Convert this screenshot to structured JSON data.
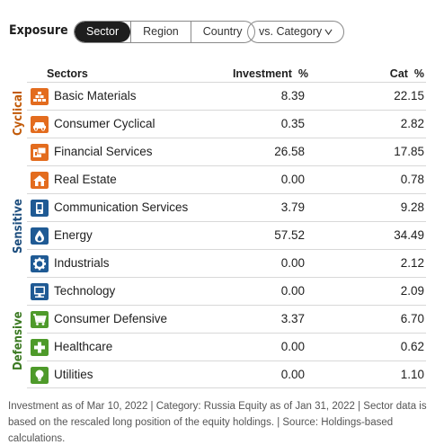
{
  "header": {
    "title": "Exposure",
    "tabs": [
      {
        "label": "Sector",
        "active": true
      },
      {
        "label": "Region",
        "active": false
      },
      {
        "label": "Country",
        "active": false
      }
    ],
    "compare_dropdown": "vs. Category"
  },
  "columns": {
    "sectors": "Sectors",
    "investment": "Investment  %",
    "category": "Cat  %"
  },
  "groups": {
    "cyclical": {
      "label": "Cyclical",
      "color": "#c25b0a"
    },
    "sensitive": {
      "label": "Sensitive",
      "color": "#1d4e7e"
    },
    "defensive": {
      "label": "Defensive",
      "color": "#3c7a23"
    }
  },
  "rows": [
    {
      "name": "Basic Materials",
      "investment": "8.39",
      "cat": "22.15",
      "icon": "basic-materials-icon",
      "color": "#e36c1e"
    },
    {
      "name": "Consumer Cyclical",
      "investment": "0.35",
      "cat": "2.82",
      "icon": "consumer-cyclical-icon",
      "color": "#e36c1e"
    },
    {
      "name": "Financial Services",
      "investment": "26.58",
      "cat": "17.85",
      "icon": "financial-services-icon",
      "color": "#e36c1e"
    },
    {
      "name": "Real Estate",
      "investment": "0.00",
      "cat": "0.78",
      "icon": "real-estate-icon",
      "color": "#e36c1e"
    },
    {
      "name": "Communication Services",
      "investment": "3.79",
      "cat": "9.28",
      "icon": "communication-services-icon",
      "color": "#1f5a94"
    },
    {
      "name": "Energy",
      "investment": "57.52",
      "cat": "34.49",
      "icon": "energy-icon",
      "color": "#1f5a94"
    },
    {
      "name": "Industrials",
      "investment": "0.00",
      "cat": "2.12",
      "icon": "industrials-icon",
      "color": "#1f5a94"
    },
    {
      "name": "Technology",
      "investment": "0.00",
      "cat": "2.09",
      "icon": "technology-icon",
      "color": "#1f5a94"
    },
    {
      "name": "Consumer Defensive",
      "investment": "3.37",
      "cat": "6.70",
      "icon": "consumer-defensive-icon",
      "color": "#4e9a2a"
    },
    {
      "name": "Healthcare",
      "investment": "0.00",
      "cat": "0.62",
      "icon": "healthcare-icon",
      "color": "#4e9a2a"
    },
    {
      "name": "Utilities",
      "investment": "0.00",
      "cat": "1.10",
      "icon": "utilities-icon",
      "color": "#4e9a2a"
    }
  ],
  "footnote": "Investment as of Mar 10, 2022 | Category: Russia Equity as of Jan 31, 2022 | Sector data is based on the rescaled long position of the equity holdings. | Source: Holdings-based calculations."
}
